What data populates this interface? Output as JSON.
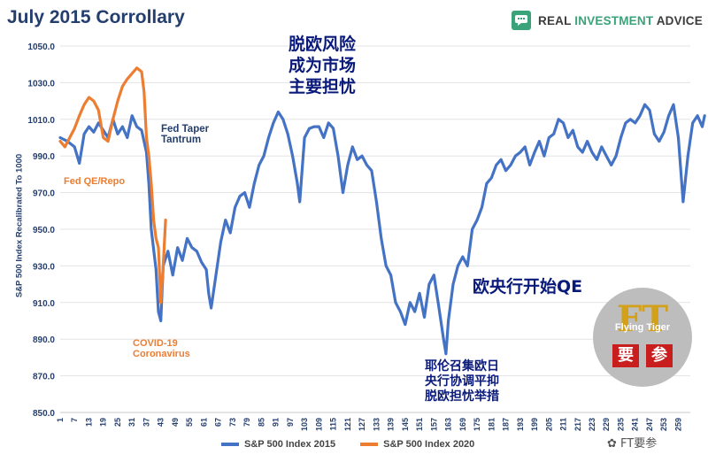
{
  "title": "July 2015 Corrollary",
  "brand": {
    "name": "REAL INVESTMENT ADVICE",
    "name_part1": "REAL ",
    "name_part2": "INVESTMENT ",
    "name_part3": "ADVICE",
    "icon": "chat-bubble-icon",
    "color": "#3aa37a"
  },
  "annotations": {
    "fed_taper": "Fed Taper\nTantrum",
    "fed_qe": "Fed QE/Repo",
    "covid": "COVID-19\nCoronavirus",
    "brexit_cn": "脱欧风险\n成为市场\n主要担忧",
    "ecb_cn": "欧央行开始QE",
    "yellen_cn": "耶伦召集欧日\n央行协调平抑\n脱欧担忧举措"
  },
  "badge": {
    "letters": "FT",
    "sub": "Flying Tiger",
    "box1": "要",
    "box2": "参"
  },
  "watermark": "FT要参",
  "chart_data": {
    "type": "line",
    "title": "July 2015 Corrollary",
    "xlabel": "",
    "ylabel": "S&P 500 Index Recalibrated To 1000",
    "ylim": [
      850,
      1050
    ],
    "yticks": [
      850,
      870,
      890,
      910,
      930,
      950,
      970,
      990,
      1010,
      1030,
      1050
    ],
    "ytick_labels": [
      "850.0",
      "870.0",
      "890.0",
      "910.0",
      "930.0",
      "950.0",
      "970.0",
      "990.0",
      "1010.0",
      "1030.0",
      "1050.0"
    ],
    "xlim": [
      1,
      264
    ],
    "xticks": [
      1,
      7,
      13,
      19,
      25,
      31,
      37,
      43,
      49,
      55,
      61,
      67,
      73,
      79,
      85,
      91,
      97,
      103,
      109,
      115,
      121,
      127,
      133,
      139,
      145,
      151,
      157,
      163,
      169,
      175,
      181,
      187,
      193,
      199,
      205,
      211,
      217,
      223,
      229,
      235,
      241,
      247,
      253,
      259
    ],
    "grid": true,
    "legend": "bottom-center",
    "series": [
      {
        "name": "S&P 500 Index 2015",
        "color": "#4472c4",
        "points": [
          [
            1,
            1000
          ],
          [
            4,
            998
          ],
          [
            7,
            995
          ],
          [
            9,
            986
          ],
          [
            11,
            1002
          ],
          [
            13,
            1006
          ],
          [
            15,
            1003
          ],
          [
            17,
            1008
          ],
          [
            19,
            1004
          ],
          [
            21,
            1000
          ],
          [
            23,
            1010
          ],
          [
            25,
            1002
          ],
          [
            27,
            1006
          ],
          [
            29,
            1000
          ],
          [
            31,
            1012
          ],
          [
            33,
            1006
          ],
          [
            35,
            1004
          ],
          [
            37,
            992
          ],
          [
            38,
            975
          ],
          [
            39,
            950
          ],
          [
            41,
            928
          ],
          [
            42,
            905
          ],
          [
            43,
            900
          ],
          [
            44,
            930
          ],
          [
            46,
            938
          ],
          [
            48,
            925
          ],
          [
            50,
            940
          ],
          [
            52,
            933
          ],
          [
            54,
            945
          ],
          [
            56,
            940
          ],
          [
            58,
            938
          ],
          [
            60,
            932
          ],
          [
            62,
            928
          ],
          [
            63,
            915
          ],
          [
            64,
            907
          ],
          [
            66,
            925
          ],
          [
            68,
            943
          ],
          [
            70,
            955
          ],
          [
            72,
            948
          ],
          [
            74,
            962
          ],
          [
            76,
            968
          ],
          [
            78,
            970
          ],
          [
            80,
            962
          ],
          [
            82,
            975
          ],
          [
            84,
            985
          ],
          [
            86,
            990
          ],
          [
            88,
            1000
          ],
          [
            90,
            1008
          ],
          [
            92,
            1014
          ],
          [
            94,
            1010
          ],
          [
            96,
            1002
          ],
          [
            98,
            990
          ],
          [
            100,
            975
          ],
          [
            101,
            965
          ],
          [
            103,
            1000
          ],
          [
            105,
            1005
          ],
          [
            107,
            1006
          ],
          [
            109,
            1006
          ],
          [
            111,
            1000
          ],
          [
            113,
            1008
          ],
          [
            115,
            1005
          ],
          [
            117,
            990
          ],
          [
            119,
            970
          ],
          [
            121,
            985
          ],
          [
            123,
            995
          ],
          [
            125,
            988
          ],
          [
            127,
            990
          ],
          [
            129,
            985
          ],
          [
            131,
            982
          ],
          [
            133,
            965
          ],
          [
            135,
            945
          ],
          [
            137,
            930
          ],
          [
            139,
            925
          ],
          [
            141,
            910
          ],
          [
            143,
            905
          ],
          [
            145,
            898
          ],
          [
            147,
            910
          ],
          [
            149,
            905
          ],
          [
            151,
            915
          ],
          [
            153,
            902
          ],
          [
            155,
            920
          ],
          [
            157,
            925
          ],
          [
            159,
            908
          ],
          [
            161,
            890
          ],
          [
            162,
            882
          ],
          [
            163,
            900
          ],
          [
            165,
            920
          ],
          [
            167,
            930
          ],
          [
            169,
            935
          ],
          [
            171,
            930
          ],
          [
            173,
            950
          ],
          [
            175,
            955
          ],
          [
            177,
            962
          ],
          [
            179,
            975
          ],
          [
            181,
            978
          ],
          [
            183,
            985
          ],
          [
            185,
            988
          ],
          [
            187,
            982
          ],
          [
            189,
            985
          ],
          [
            191,
            990
          ],
          [
            193,
            992
          ],
          [
            195,
            995
          ],
          [
            197,
            985
          ],
          [
            199,
            992
          ],
          [
            201,
            998
          ],
          [
            203,
            990
          ],
          [
            205,
            1000
          ],
          [
            207,
            1002
          ],
          [
            209,
            1010
          ],
          [
            211,
            1008
          ],
          [
            213,
            1000
          ],
          [
            215,
            1004
          ],
          [
            217,
            995
          ],
          [
            219,
            992
          ],
          [
            221,
            998
          ],
          [
            223,
            992
          ],
          [
            225,
            988
          ],
          [
            227,
            995
          ],
          [
            229,
            990
          ],
          [
            231,
            985
          ],
          [
            233,
            990
          ],
          [
            235,
            1000
          ],
          [
            237,
            1008
          ],
          [
            239,
            1010
          ],
          [
            241,
            1008
          ],
          [
            243,
            1012
          ],
          [
            245,
            1018
          ],
          [
            247,
            1015
          ],
          [
            249,
            1002
          ],
          [
            251,
            998
          ],
          [
            253,
            1003
          ],
          [
            255,
            1012
          ],
          [
            257,
            1018
          ],
          [
            259,
            1000
          ],
          [
            261,
            965
          ],
          [
            263,
            990
          ],
          [
            265,
            1008
          ],
          [
            267,
            1012
          ],
          [
            269,
            1006
          ],
          [
            270,
            1012
          ]
        ]
      },
      {
        "name": "S&P 500 Index 2020",
        "color": "#ed7d31",
        "points": [
          [
            1,
            998
          ],
          [
            3,
            995
          ],
          [
            5,
            1000
          ],
          [
            7,
            1005
          ],
          [
            9,
            1012
          ],
          [
            11,
            1018
          ],
          [
            13,
            1022
          ],
          [
            15,
            1020
          ],
          [
            17,
            1015
          ],
          [
            19,
            1000
          ],
          [
            21,
            998
          ],
          [
            23,
            1010
          ],
          [
            25,
            1020
          ],
          [
            27,
            1028
          ],
          [
            29,
            1032
          ],
          [
            31,
            1035
          ],
          [
            33,
            1038
          ],
          [
            35,
            1036
          ],
          [
            36,
            1025
          ],
          [
            37,
            1000
          ],
          [
            38,
            990
          ],
          [
            39,
            975
          ],
          [
            40,
            955
          ],
          [
            41,
            945
          ],
          [
            42,
            940
          ],
          [
            43,
            910
          ],
          [
            44,
            930
          ],
          [
            45,
            955
          ]
        ]
      }
    ]
  }
}
